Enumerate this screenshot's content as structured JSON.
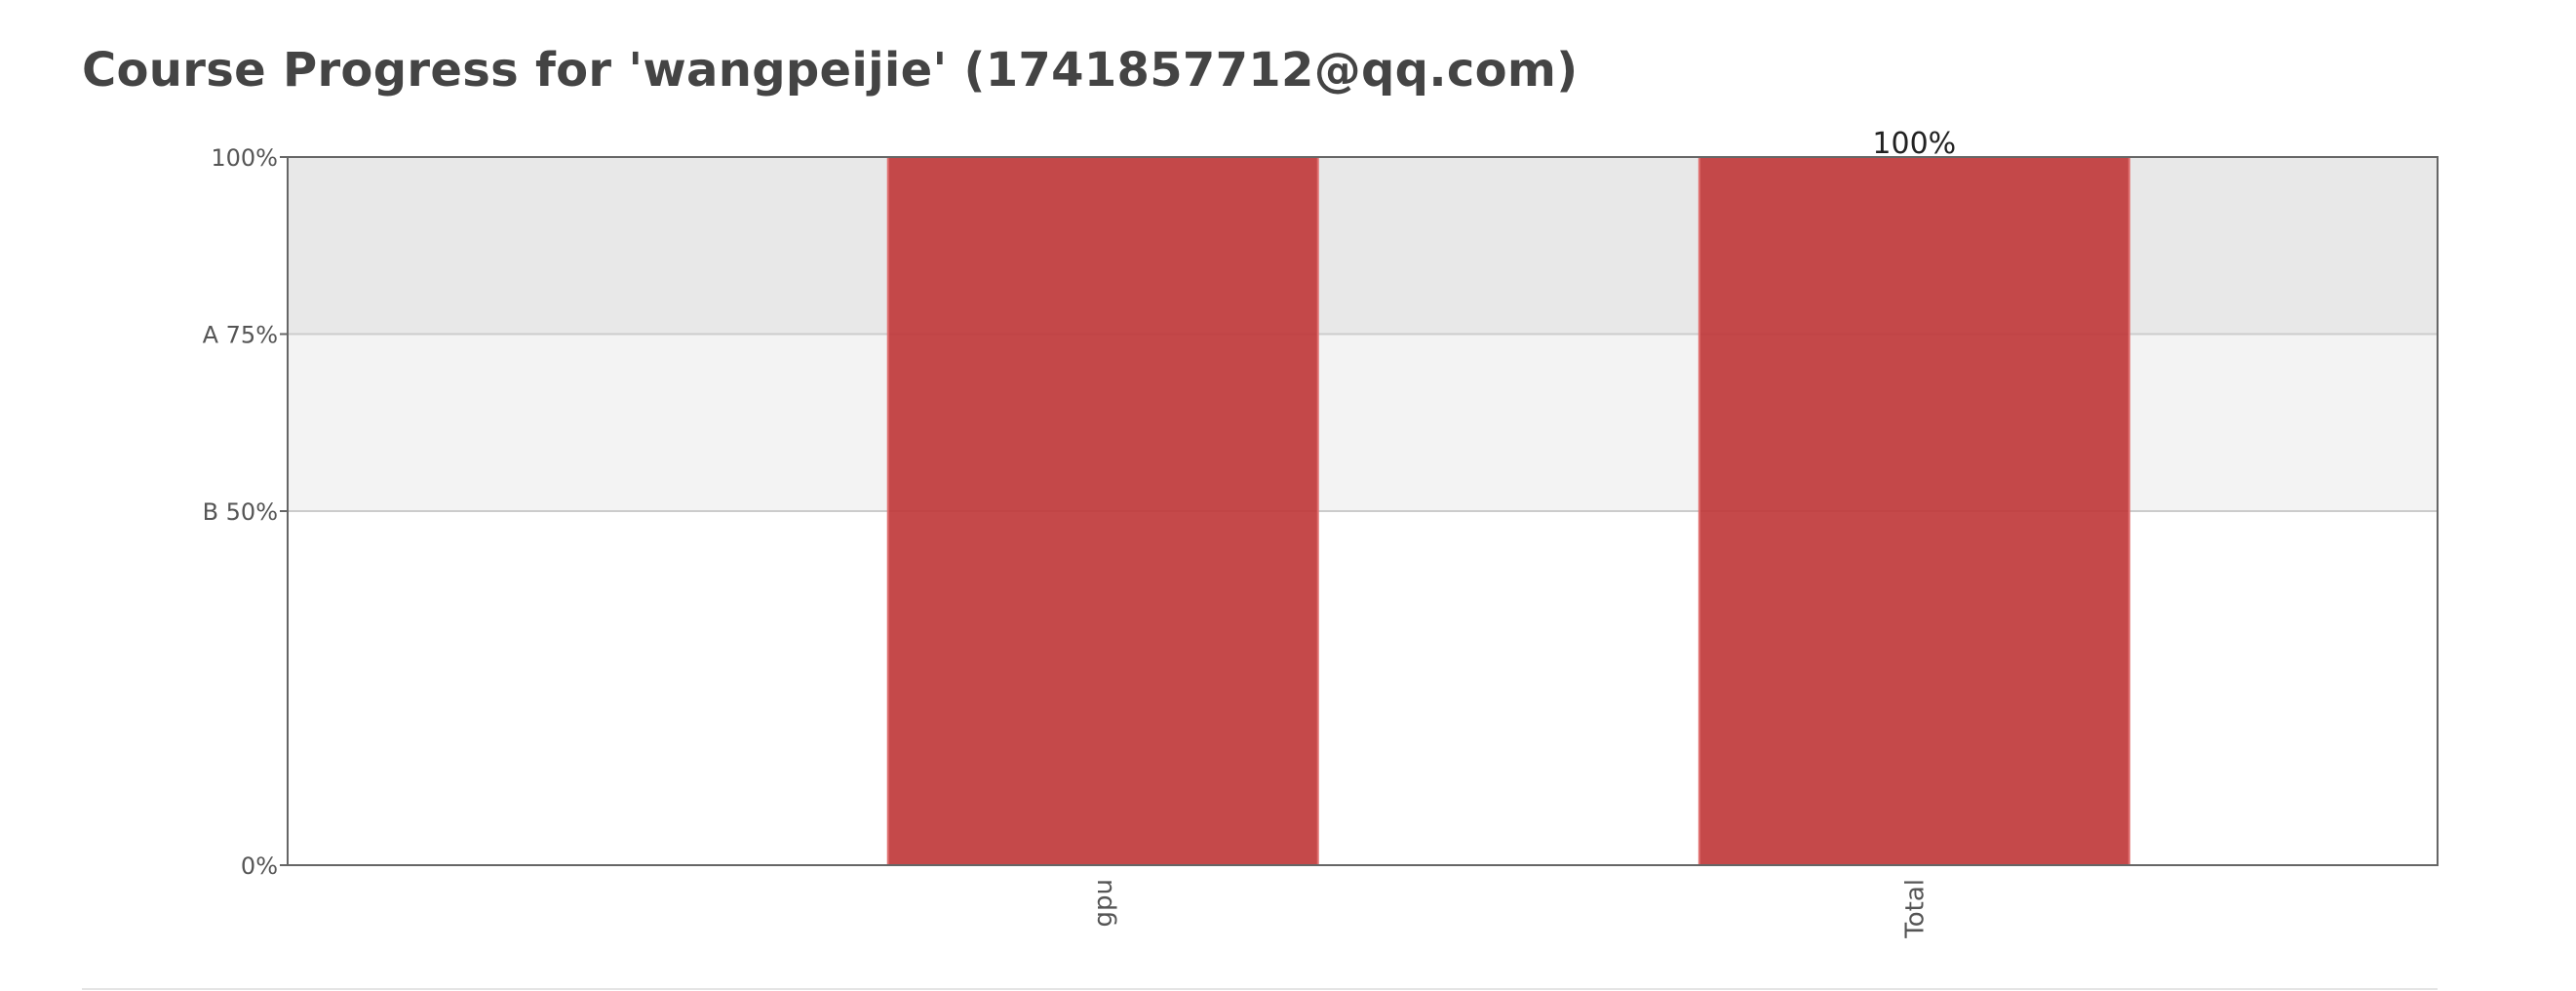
{
  "page": {
    "title": "Course Progress for 'wangpeijie' (1741857712@qq.com)"
  },
  "colors": {
    "bar": "#c0393b",
    "bar_stroke": "#e07070",
    "band_a": "#e8e8e8",
    "band_b": "#f3f3f3",
    "gridline": "#cccccc",
    "axis": "#666666",
    "title": "#444444"
  },
  "chart_data": {
    "type": "bar",
    "categories": [
      "gpu",
      "Total"
    ],
    "values": [
      100,
      100
    ],
    "ylim": [
      0,
      100
    ],
    "y_ticks": [
      {
        "value": 0,
        "label": "0%"
      },
      {
        "value": 50,
        "label": "B 50%"
      },
      {
        "value": 75,
        "label": "A 75%"
      },
      {
        "value": 100,
        "label": "100%"
      }
    ],
    "grade_bands": [
      {
        "from": 75,
        "to": 100,
        "grade": "A"
      },
      {
        "from": 50,
        "to": 75,
        "grade": "B"
      }
    ],
    "data_labels": [
      {
        "category": "Total",
        "text": "100%"
      }
    ],
    "x_tick_rotation": "vertical",
    "grid": false,
    "legend": "none"
  }
}
